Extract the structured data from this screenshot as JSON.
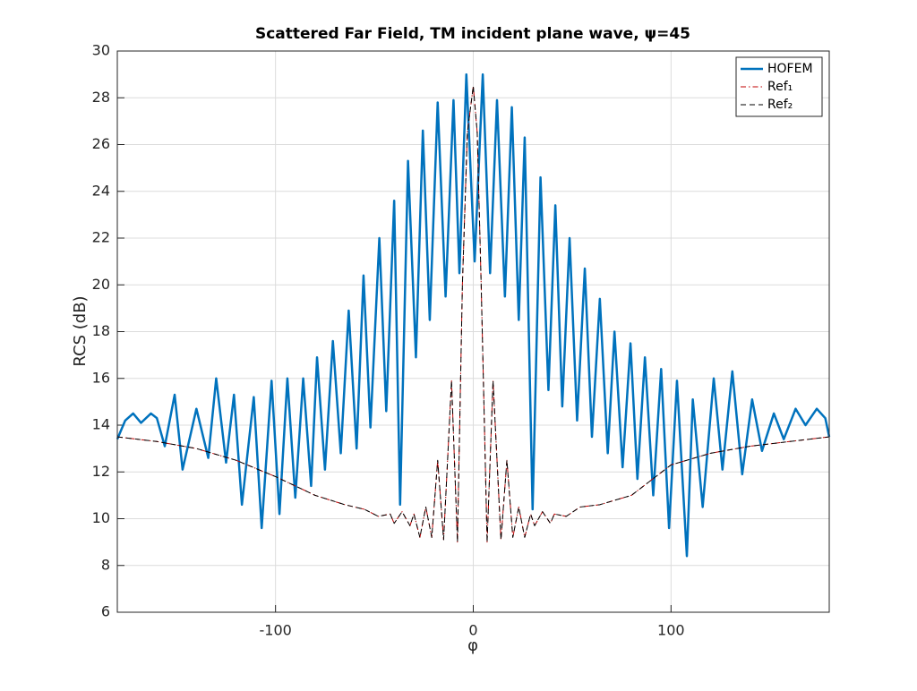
{
  "chart_data": {
    "type": "line",
    "title": "Scattered Far Field, TM incident plane wave, ψ=45",
    "x_label": "φ",
    "y_label": "RCS (dB)",
    "xlim": [
      -180,
      180
    ],
    "ylim": [
      6,
      30
    ],
    "xticks": [
      -100,
      0,
      100
    ],
    "yticks": [
      6,
      8,
      10,
      12,
      14,
      16,
      18,
      20,
      22,
      24,
      26,
      28,
      30
    ],
    "grid": true,
    "legend": "upper-right",
    "series": [
      {
        "name": "HOFEM",
        "color": "#0072bd",
        "linestyle": "solid",
        "x": [
          -180,
          -176,
          -172,
          -168,
          -163,
          -160,
          -156,
          -151,
          -147,
          -140,
          -134,
          -130,
          -125,
          -121,
          -117,
          -111,
          -107,
          -102,
          -98,
          -94,
          -90,
          -86,
          -82,
          -79,
          -75,
          -71,
          -67,
          -63,
          -59,
          -55.5,
          -52,
          -47.5,
          -44,
          -40,
          -37,
          -33,
          -29,
          -25.5,
          -22,
          -18,
          -14,
          -10,
          -7,
          -3.5,
          0.7,
          4.8,
          8.5,
          12,
          16,
          19.5,
          23,
          26,
          30,
          34,
          38,
          41.5,
          45,
          48.7,
          52.5,
          56.4,
          60,
          64,
          68,
          71.4,
          75.5,
          79.5,
          83,
          86.8,
          91,
          95,
          99,
          103,
          108,
          111,
          116,
          121.6,
          126,
          131,
          136,
          141,
          146,
          152,
          157,
          163,
          168,
          173.7,
          178,
          180
        ],
        "values": [
          13.4,
          14.2,
          14.5,
          14.1,
          14.5,
          14.3,
          13.1,
          15.3,
          12.1,
          14.7,
          12.6,
          16.0,
          12.4,
          15.3,
          10.6,
          15.2,
          9.6,
          15.9,
          10.2,
          16.0,
          10.9,
          16.0,
          11.4,
          16.9,
          12.1,
          17.6,
          12.8,
          18.9,
          13.0,
          20.4,
          13.9,
          22.0,
          14.6,
          23.6,
          10.6,
          25.3,
          16.9,
          26.6,
          18.5,
          27.8,
          19.5,
          27.9,
          20.5,
          29.0,
          21.0,
          29.0,
          20.5,
          27.9,
          19.5,
          27.6,
          18.5,
          26.3,
          10.4,
          24.6,
          15.5,
          23.4,
          14.8,
          22.0,
          14.2,
          20.7,
          13.5,
          19.4,
          12.8,
          18.0,
          12.2,
          17.5,
          11.7,
          16.9,
          11.0,
          16.4,
          9.6,
          15.9,
          8.4,
          15.1,
          10.5,
          16.0,
          12.1,
          16.3,
          11.9,
          15.1,
          12.9,
          14.5,
          13.4,
          14.7,
          14.0,
          14.7,
          14.3,
          13.5
        ]
      },
      {
        "name": "Ref₁",
        "color": "#c00000",
        "linestyle": "dashdot",
        "x": [
          -180,
          -160,
          -140,
          -120,
          -100,
          -80,
          -65,
          -55,
          -48,
          -42,
          -40,
          -36,
          -32,
          -30,
          -27,
          -24,
          -21,
          -18,
          -15,
          -11,
          -8,
          -5.5,
          -3,
          0,
          2,
          4,
          7,
          10,
          14,
          17,
          20,
          23,
          26,
          29,
          31,
          35,
          39,
          41,
          47,
          54,
          64,
          80,
          100,
          120,
          140,
          160,
          180
        ],
        "values": [
          13.5,
          13.3,
          13.0,
          12.5,
          11.8,
          11.0,
          10.6,
          10.4,
          10.1,
          10.2,
          9.8,
          10.3,
          9.7,
          10.2,
          9.2,
          10.5,
          9.2,
          12.5,
          9.1,
          15.9,
          9.0,
          20.0,
          26.5,
          28.5,
          26.5,
          20.0,
          9.0,
          15.9,
          9.1,
          12.5,
          9.2,
          10.5,
          9.2,
          10.2,
          9.7,
          10.3,
          9.8,
          10.2,
          10.1,
          10.5,
          10.6,
          11.0,
          12.3,
          12.8,
          13.1,
          13.3,
          13.5
        ]
      },
      {
        "name": "Ref₂",
        "color": "#000000",
        "linestyle": "dashed",
        "x": [
          -180,
          -160,
          -140,
          -120,
          -100,
          -80,
          -65,
          -55,
          -48,
          -42,
          -40,
          -36,
          -32,
          -30,
          -27,
          -24,
          -21,
          -18,
          -15,
          -11,
          -8,
          -5.5,
          -3,
          0,
          2,
          4,
          7,
          10,
          14,
          17,
          20,
          23,
          26,
          29,
          31,
          35,
          39,
          41,
          47,
          54,
          64,
          80,
          100,
          120,
          140,
          160,
          180
        ],
        "values": [
          13.5,
          13.3,
          13.0,
          12.5,
          11.8,
          11.0,
          10.6,
          10.4,
          10.1,
          10.2,
          9.8,
          10.3,
          9.7,
          10.2,
          9.2,
          10.5,
          9.2,
          12.5,
          9.1,
          15.9,
          9.0,
          20.0,
          26.5,
          28.5,
          26.5,
          20.0,
          9.0,
          15.9,
          9.1,
          12.5,
          9.2,
          10.5,
          9.2,
          10.2,
          9.7,
          10.3,
          9.8,
          10.2,
          10.1,
          10.5,
          10.6,
          11.0,
          12.3,
          12.8,
          13.1,
          13.3,
          13.5
        ]
      }
    ]
  }
}
